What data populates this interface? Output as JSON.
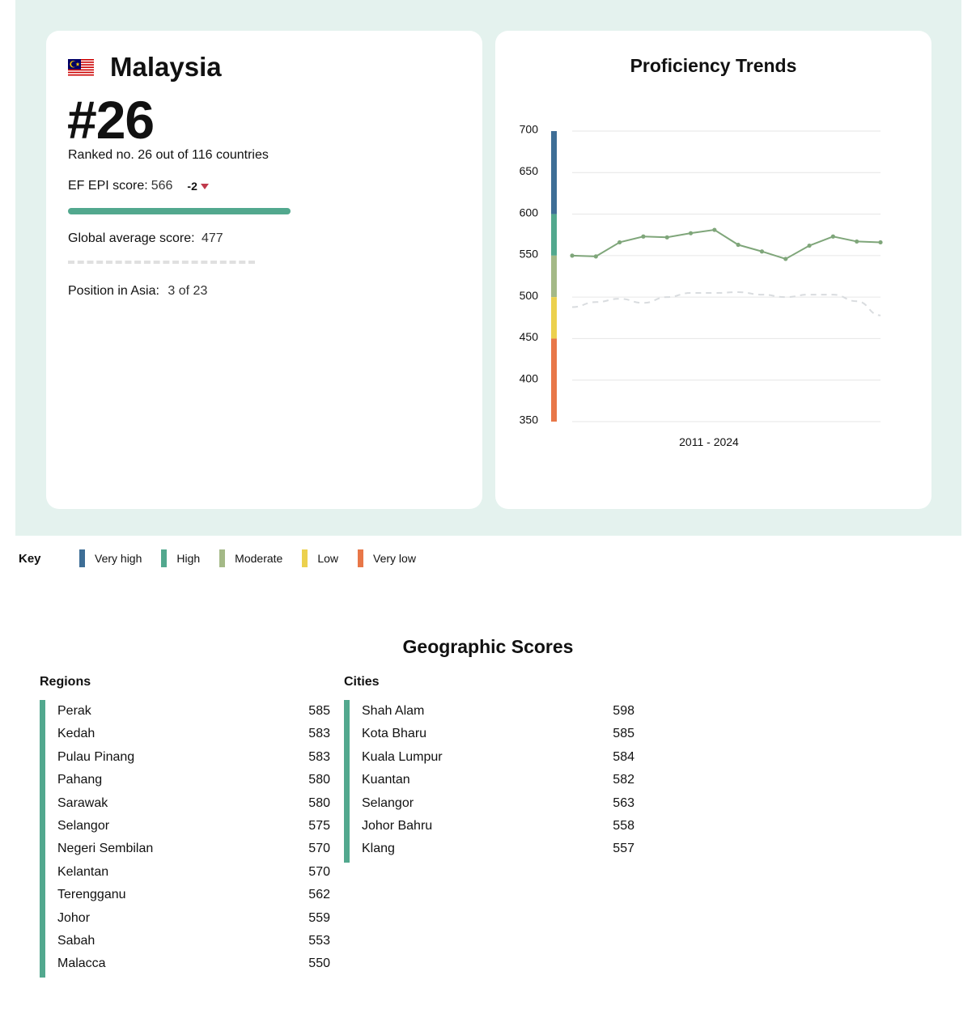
{
  "country": {
    "name": "Malaysia",
    "rank": "#26",
    "rank_sub": "Ranked no. 26 out of 116 countries",
    "epi_label": "EF EPI score:",
    "epi_value": "566",
    "epi_delta": "-2",
    "epi_score_fraction": 0.566,
    "global_label": "Global average score:",
    "global_value": "477",
    "asia_label": "Position in Asia:",
    "asia_value": "3 of 23"
  },
  "chart_data": {
    "type": "line",
    "title": "Proficiency Trends",
    "xlabel": "2011 - 2024",
    "ylabel": "",
    "ylim": [
      350,
      700
    ],
    "yticks": [
      "700",
      "650",
      "600",
      "550",
      "500",
      "450",
      "400",
      "350"
    ],
    "grid": true,
    "x": [
      2011,
      2012,
      2013,
      2014,
      2015,
      2016,
      2017,
      2018,
      2019,
      2020,
      2021,
      2022,
      2023,
      2024
    ],
    "series": [
      {
        "values": [
          550,
          549,
          566,
          573,
          572,
          577,
          581,
          563,
          555,
          546,
          562,
          573,
          567,
          566
        ],
        "color": "#7fa67a",
        "style": "solid"
      },
      {
        "values": [
          488,
          494,
          498,
          493,
          500,
          505,
          505,
          506,
          503,
          500,
          503,
          503,
          495,
          478
        ],
        "color": "#d9dcdf",
        "style": "dashed"
      }
    ],
    "bands": [
      {
        "label": "Very high",
        "from": 600,
        "to": 700,
        "color": "#3e6e96"
      },
      {
        "label": "High",
        "from": 550,
        "to": 600,
        "color": "#52a88e"
      },
      {
        "label": "Moderate",
        "from": 500,
        "to": 550,
        "color": "#a4b987"
      },
      {
        "label": "Low",
        "from": 450,
        "to": 500,
        "color": "#ecd14e"
      },
      {
        "label": "Very low",
        "from": 350,
        "to": 450,
        "color": "#e87748"
      }
    ]
  },
  "key": {
    "title": "Key",
    "items": [
      {
        "label": "Very high",
        "color": "#3e6e96"
      },
      {
        "label": "High",
        "color": "#52a88e"
      },
      {
        "label": "Moderate",
        "color": "#a4b987"
      },
      {
        "label": "Low",
        "color": "#ecd14e"
      },
      {
        "label": "Very low",
        "color": "#e87748"
      }
    ]
  },
  "geo": {
    "title": "Geographic Scores",
    "regions_title": "Regions",
    "cities_title": "Cities",
    "regions": [
      {
        "name": "Perak",
        "score": "585"
      },
      {
        "name": "Kedah",
        "score": "583"
      },
      {
        "name": "Pulau Pinang",
        "score": "583"
      },
      {
        "name": "Pahang",
        "score": "580"
      },
      {
        "name": "Sarawak",
        "score": "580"
      },
      {
        "name": "Selangor",
        "score": "575"
      },
      {
        "name": "Negeri Sembilan",
        "score": "570"
      },
      {
        "name": "Kelantan",
        "score": "570"
      },
      {
        "name": "Terengganu",
        "score": "562"
      },
      {
        "name": "Johor",
        "score": "559"
      },
      {
        "name": "Sabah",
        "score": "553"
      },
      {
        "name": "Malacca",
        "score": "550"
      }
    ],
    "cities": [
      {
        "name": "Shah Alam",
        "score": "598"
      },
      {
        "name": "Kota Bharu",
        "score": "585"
      },
      {
        "name": "Kuala Lumpur",
        "score": "584"
      },
      {
        "name": "Kuantan",
        "score": "582"
      },
      {
        "name": "Selangor",
        "score": "563"
      },
      {
        "name": "Johor Bahru",
        "score": "558"
      },
      {
        "name": "Klang",
        "score": "557"
      }
    ]
  }
}
